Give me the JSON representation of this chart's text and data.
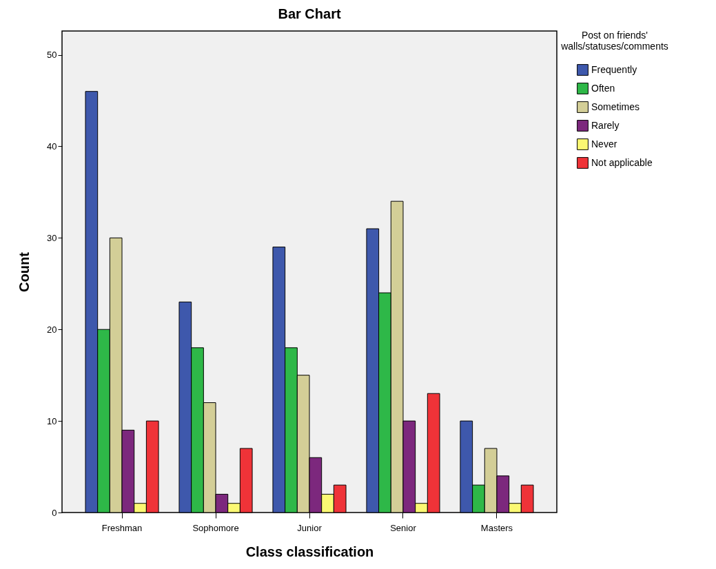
{
  "chart_data": {
    "type": "bar",
    "title": "Bar Chart",
    "xlabel": "Class classification",
    "ylabel": "Count",
    "legend_title": "Post on friends'\nwalls/statuses/comments",
    "legend": "right",
    "categories": [
      "Freshman",
      "Sophomore",
      "Junior",
      "Senior",
      "Masters"
    ],
    "ylim": [
      0,
      52.6
    ],
    "yticks": [
      0,
      10,
      20,
      30,
      40,
      50
    ],
    "series": [
      {
        "name": "Frequently",
        "color": "#3e58ac",
        "values": [
          46,
          23,
          29,
          31,
          10
        ]
      },
      {
        "name": "Often",
        "color": "#2eb848",
        "values": [
          20,
          18,
          18,
          24,
          3
        ]
      },
      {
        "name": "Sometimes",
        "color": "#d3ce97",
        "values": [
          30,
          12,
          15,
          34,
          7
        ]
      },
      {
        "name": "Rarely",
        "color": "#7c287d",
        "values": [
          9,
          2,
          6,
          10,
          4
        ]
      },
      {
        "name": "Never",
        "color": "#fbf873",
        "values": [
          1,
          1,
          2,
          1,
          1
        ]
      },
      {
        "name": "Not applicable",
        "color": "#ef3338",
        "values": [
          10,
          7,
          3,
          13,
          3
        ]
      }
    ]
  }
}
